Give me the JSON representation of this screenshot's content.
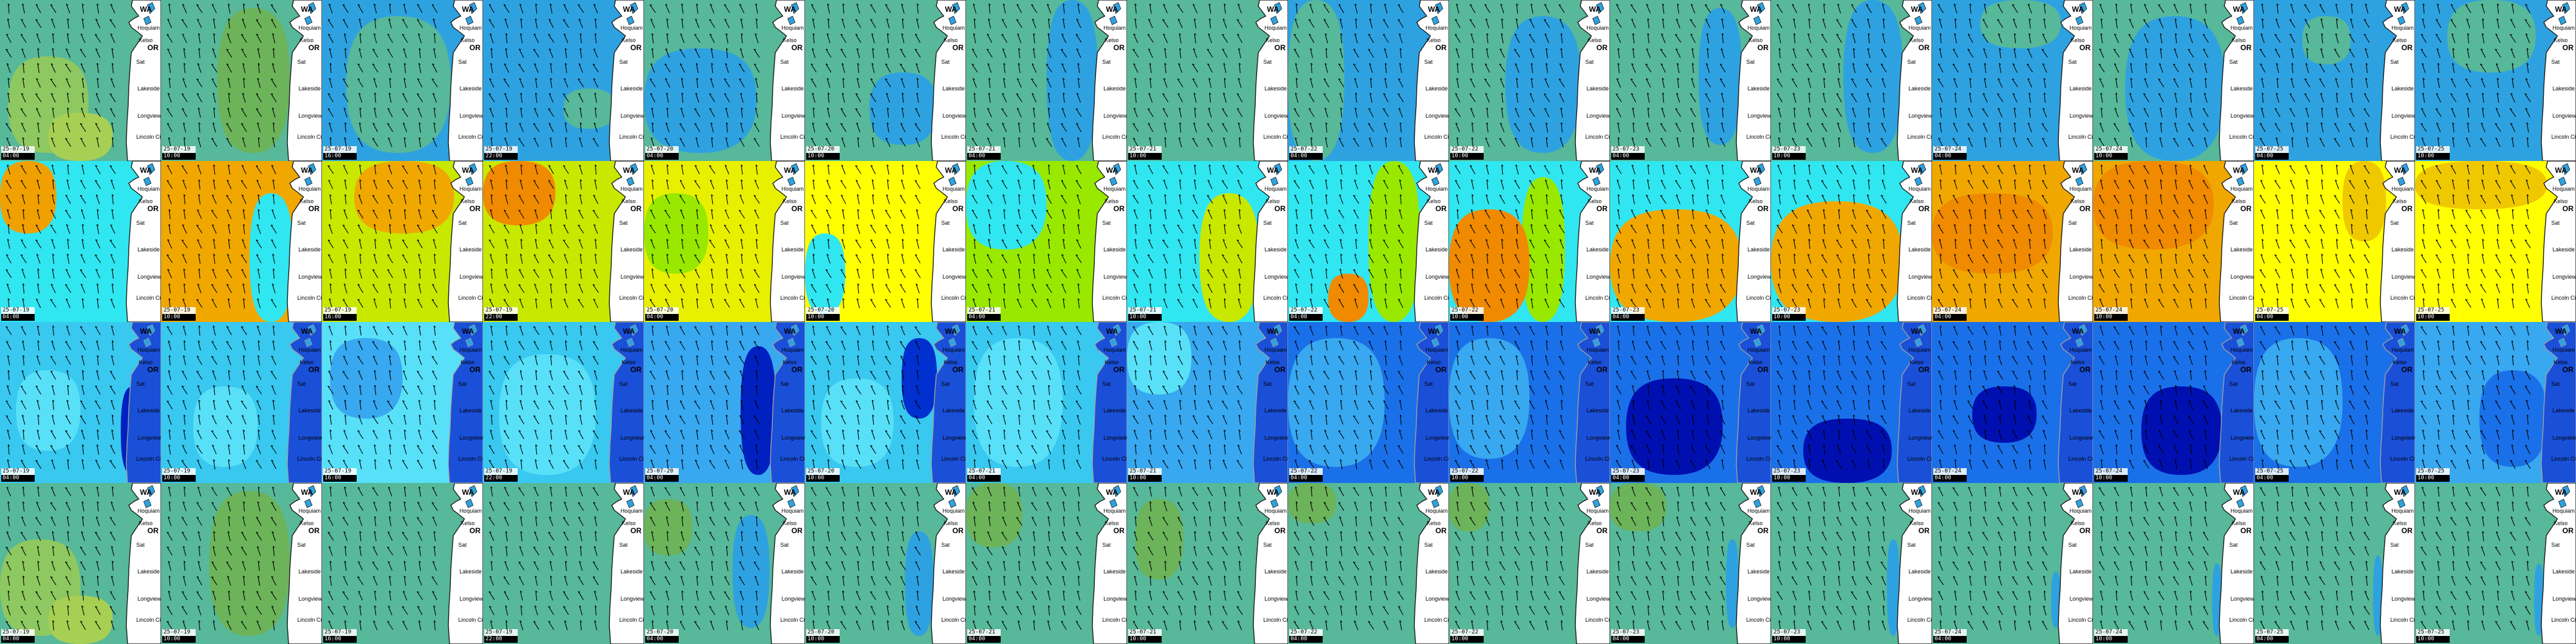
{
  "layout": {
    "columns": 16,
    "rows": 4
  },
  "places": [
    "WA",
    "Hoquiam",
    "Kelso",
    "OR",
    "Sat",
    "Lakeside",
    "Longview",
    "Lincoln City"
  ],
  "rows": [
    {
      "name": "row-1",
      "land": "#ffffff",
      "coast": "#1a1a1a",
      "tiles": [
        {
          "date": "25-07-19",
          "time": "04:00",
          "bg": "#57b89a",
          "blobs": [
            [
              "#8dc860",
              0.05,
              0.35,
              0.55,
              0.95
            ],
            [
              "#a6cf54",
              0.3,
              0.7,
              0.7,
              1.0
            ]
          ]
        },
        {
          "date": "25-07-19",
          "time": "10:00",
          "bg": "#57b89a",
          "blobs": [
            [
              "#6cb35a",
              0.35,
              0.05,
              0.8,
              0.95
            ]
          ]
        },
        {
          "date": "25-07-19",
          "time": "16:00",
          "bg": "#2ea2e0",
          "blobs": [
            [
              "#57b89a",
              0.15,
              0.1,
              0.8,
              0.95
            ]
          ]
        },
        {
          "date": "25-07-19",
          "time": "22:00",
          "bg": "#2ea2e0",
          "blobs": [
            [
              "#57b89a",
              0.5,
              0.55,
              0.82,
              0.8
            ]
          ]
        },
        {
          "date": "25-07-20",
          "time": "04:00",
          "bg": "#57b89a",
          "blobs": [
            [
              "#2ea2e0",
              0.0,
              0.3,
              0.7,
              0.95
            ]
          ]
        },
        {
          "date": "25-07-20",
          "time": "10:00",
          "bg": "#57b89a",
          "blobs": [
            [
              "#2ea2e0",
              0.4,
              0.45,
              0.82,
              0.9
            ]
          ]
        },
        {
          "date": "25-07-21",
          "time": "04:00",
          "bg": "#57b89a",
          "blobs": [
            [
              "#2ea2e0",
              0.5,
              0.0,
              0.82,
              1.0
            ]
          ]
        },
        {
          "date": "25-07-21",
          "time": "10:00",
          "bg": "#57b89a",
          "blobs": []
        },
        {
          "date": "25-07-22",
          "time": "04:00",
          "bg": "#2ea2e0",
          "blobs": [
            [
              "#57b89a",
              0.0,
              0.0,
              0.35,
              1.0
            ]
          ]
        },
        {
          "date": "25-07-22",
          "time": "10:00",
          "bg": "#57b89a",
          "blobs": [
            [
              "#2ea2e0",
              0.35,
              0.1,
              0.82,
              0.95
            ]
          ]
        },
        {
          "date": "25-07-23",
          "time": "04:00",
          "bg": "#57b89a",
          "blobs": [
            [
              "#2ea2e0",
              0.55,
              0.05,
              0.82,
              0.9
            ]
          ]
        },
        {
          "date": "25-07-23",
          "time": "10:00",
          "bg": "#57b89a",
          "blobs": [
            [
              "#2ea2e0",
              0.45,
              0.0,
              0.82,
              0.95
            ]
          ]
        },
        {
          "date": "25-07-24",
          "time": "04:00",
          "bg": "#2ea2e0",
          "blobs": [
            [
              "#57b89a",
              0.3,
              0.0,
              0.8,
              0.3
            ]
          ]
        },
        {
          "date": "25-07-24",
          "time": "10:00",
          "bg": "#57b89a",
          "blobs": [
            [
              "#2ea2e0",
              0.2,
              0.1,
              0.82,
              1.0
            ]
          ]
        },
        {
          "date": "25-07-25",
          "time": "04:00",
          "bg": "#2ea2e0",
          "blobs": [
            [
              "#57b89a",
              0.3,
              0.1,
              0.6,
              0.4
            ]
          ]
        },
        {
          "date": "25-07-25",
          "time": "10:00",
          "bg": "#2ea2e0",
          "blobs": [
            [
              "#57b89a",
              0.2,
              0.0,
              0.75,
              0.45
            ]
          ]
        }
      ]
    },
    {
      "name": "row-2",
      "land": "#ffffff",
      "coast": "#1a1a1a",
      "tiles": [
        {
          "date": "25-07-19",
          "time": "04:00",
          "bg": "#30e6f0",
          "blobs": [
            [
              "#f0a000",
              0.0,
              0.0,
              0.35,
              0.45
            ]
          ]
        },
        {
          "date": "25-07-19",
          "time": "10:00",
          "bg": "#f0a800",
          "blobs": [
            [
              "#30e6f0",
              0.55,
              0.2,
              0.82,
              1.0
            ]
          ]
        },
        {
          "date": "25-07-19",
          "time": "16:00",
          "bg": "#c8e800",
          "blobs": [
            [
              "#f0a800",
              0.2,
              0.0,
              0.82,
              0.45
            ]
          ]
        },
        {
          "date": "25-07-19",
          "time": "22:00",
          "bg": "#c8e800",
          "blobs": [
            [
              "#f08a00",
              0.0,
              0.0,
              0.45,
              0.4
            ]
          ]
        },
        {
          "date": "25-07-20",
          "time": "04:00",
          "bg": "#e8f000",
          "blobs": [
            [
              "#98e800",
              0.0,
              0.2,
              0.4,
              0.7
            ]
          ]
        },
        {
          "date": "25-07-20",
          "time": "10:00",
          "bg": "#ffff00",
          "blobs": [
            [
              "#30e6f0",
              0.0,
              0.45,
              0.25,
              0.95
            ]
          ]
        },
        {
          "date": "25-07-21",
          "time": "04:00",
          "bg": "#98e800",
          "blobs": [
            [
              "#30e6f0",
              0.0,
              0.0,
              0.5,
              0.55
            ]
          ]
        },
        {
          "date": "25-07-21",
          "time": "10:00",
          "bg": "#30e6f0",
          "blobs": [
            [
              "#c8e800",
              0.45,
              0.2,
              0.82,
              1.0
            ]
          ]
        },
        {
          "date": "25-07-22",
          "time": "04:00",
          "bg": "#30e6f0",
          "blobs": [
            [
              "#98e800",
              0.5,
              0.0,
              0.82,
              1.0
            ],
            [
              "#f08a00",
              0.25,
              0.7,
              0.5,
              1.0
            ]
          ]
        },
        {
          "date": "25-07-22",
          "time": "10:00",
          "bg": "#30e6f0",
          "blobs": [
            [
              "#98e800",
              0.45,
              0.1,
              0.72,
              1.0
            ],
            [
              "#f08a00",
              0.0,
              0.3,
              0.5,
              1.0
            ]
          ]
        },
        {
          "date": "25-07-23",
          "time": "04:00",
          "bg": "#30e6f0",
          "blobs": [
            [
              "#f0a800",
              0.0,
              0.3,
              0.82,
              1.0
            ]
          ]
        },
        {
          "date": "25-07-23",
          "time": "10:00",
          "bg": "#30e6f0",
          "blobs": [
            [
              "#f0a800",
              0.0,
              0.25,
              0.82,
              1.0
            ]
          ]
        },
        {
          "date": "25-07-24",
          "time": "04:00",
          "bg": "#f0a800",
          "blobs": [
            [
              "#f08a00",
              0.0,
              0.2,
              0.75,
              0.7
            ]
          ]
        },
        {
          "date": "25-07-24",
          "time": "10:00",
          "bg": "#f0a800",
          "blobs": [
            [
              "#f08a00",
              0.0,
              0.0,
              0.75,
              0.55
            ]
          ]
        },
        {
          "date": "25-07-25",
          "time": "04:00",
          "bg": "#ffff00",
          "blobs": [
            [
              "#f0c800",
              0.55,
              0.0,
              0.82,
              0.5
            ]
          ]
        },
        {
          "date": "25-07-25",
          "time": "10:00",
          "bg": "#ffff00",
          "blobs": [
            [
              "#f0c800",
              0.0,
              0.0,
              0.82,
              0.3
            ]
          ]
        }
      ]
    },
    {
      "name": "row-3",
      "land": "#1a4fd8",
      "coast": "#a0a0a0",
      "tiles": [
        {
          "date": "25-07-19",
          "time": "04:00",
          "bg": "#38c8f0",
          "blobs": [
            [
              "#58e0f8",
              0.1,
              0.3,
              0.5,
              0.8
            ],
            [
              "#0020c0",
              0.75,
              0.4,
              0.9,
              0.95
            ]
          ]
        },
        {
          "date": "25-07-19",
          "time": "10:00",
          "bg": "#38c8f0",
          "blobs": [
            [
              "#58e0f8",
              0.2,
              0.4,
              0.6,
              0.9
            ]
          ]
        },
        {
          "date": "25-07-19",
          "time": "16:00",
          "bg": "#58e0f8",
          "blobs": [
            [
              "#38a8f0",
              0.05,
              0.1,
              0.5,
              0.6
            ]
          ]
        },
        {
          "date": "25-07-19",
          "time": "22:00",
          "bg": "#38c8f0",
          "blobs": [
            [
              "#58e0f8",
              0.1,
              0.2,
              0.7,
              0.95
            ]
          ]
        },
        {
          "date": "25-07-20",
          "time": "04:00",
          "bg": "#38a8f0",
          "blobs": [
            [
              "#0020c0",
              0.6,
              0.15,
              0.82,
              0.95
            ]
          ]
        },
        {
          "date": "25-07-20",
          "time": "10:00",
          "bg": "#38c8f0",
          "blobs": [
            [
              "#58e0f8",
              0.1,
              0.35,
              0.55,
              0.9
            ],
            [
              "#0030d0",
              0.6,
              0.1,
              0.82,
              0.6
            ]
          ]
        },
        {
          "date": "25-07-21",
          "time": "04:00",
          "bg": "#38c8f0",
          "blobs": [
            [
              "#58e0f8",
              0.05,
              0.1,
              0.6,
              0.9
            ]
          ]
        },
        {
          "date": "25-07-21",
          "time": "10:00",
          "bg": "#38a8f0",
          "blobs": [
            [
              "#58e0f8",
              0.0,
              0.0,
              0.4,
              0.45
            ]
          ]
        },
        {
          "date": "25-07-22",
          "time": "04:00",
          "bg": "#1a70e8",
          "blobs": [
            [
              "#38a8f0",
              0.0,
              0.1,
              0.6,
              0.9
            ]
          ]
        },
        {
          "date": "25-07-22",
          "time": "10:00",
          "bg": "#1a70e8",
          "blobs": [
            [
              "#38a8f0",
              0.0,
              0.1,
              0.5,
              0.85
            ]
          ]
        },
        {
          "date": "25-07-23",
          "time": "04:00",
          "bg": "#1a70e8",
          "blobs": [
            [
              "#0010b0",
              0.1,
              0.35,
              0.7,
              0.95
            ]
          ]
        },
        {
          "date": "25-07-23",
          "time": "10:00",
          "bg": "#1a70e8",
          "blobs": [
            [
              "#0010b0",
              0.2,
              0.6,
              0.75,
              1.0
            ]
          ]
        },
        {
          "date": "25-07-24",
          "time": "04:00",
          "bg": "#1a70e8",
          "blobs": [
            [
              "#0010b0",
              0.25,
              0.4,
              0.65,
              0.75
            ]
          ]
        },
        {
          "date": "25-07-24",
          "time": "10:00",
          "bg": "#1a70e8",
          "blobs": [
            [
              "#0010b0",
              0.3,
              0.4,
              0.8,
              0.95
            ]
          ]
        },
        {
          "date": "25-07-25",
          "time": "04:00",
          "bg": "#1a70e8",
          "blobs": [
            [
              "#38a8f0",
              0.0,
              0.1,
              0.55,
              0.9
            ]
          ]
        },
        {
          "date": "25-07-25",
          "time": "10:00",
          "bg": "#38a8f0",
          "blobs": [
            [
              "#1a70e8",
              0.4,
              0.3,
              0.82,
              0.9
            ]
          ]
        }
      ]
    },
    {
      "name": "row-4",
      "land": "#ffffff",
      "coast": "#1a1a1a",
      "tiles": [
        {
          "date": "25-07-19",
          "time": "04:00",
          "bg": "#57b89a",
          "blobs": [
            [
              "#8dc860",
              0.0,
              0.35,
              0.5,
              0.95
            ],
            [
              "#a6cf54",
              0.3,
              0.7,
              0.7,
              1.0
            ]
          ]
        },
        {
          "date": "25-07-19",
          "time": "10:00",
          "bg": "#57b89a",
          "blobs": [
            [
              "#6cb35a",
              0.3,
              0.05,
              0.8,
              0.95
            ]
          ]
        },
        {
          "date": "25-07-19",
          "time": "16:00",
          "bg": "#57b89a",
          "blobs": []
        },
        {
          "date": "25-07-19",
          "time": "22:00",
          "bg": "#57b89a",
          "blobs": []
        },
        {
          "date": "25-07-20",
          "time": "04:00",
          "bg": "#57b89a",
          "blobs": [
            [
              "#6cb35a",
              0.0,
              0.1,
              0.3,
              0.45
            ],
            [
              "#2ea2e0",
              0.55,
              0.2,
              0.78,
              0.9
            ]
          ]
        },
        {
          "date": "25-07-20",
          "time": "10:00",
          "bg": "#57b89a",
          "blobs": [
            [
              "#2ea2e0",
              0.62,
              0.3,
              0.8,
              0.95
            ]
          ]
        },
        {
          "date": "25-07-21",
          "time": "04:00",
          "bg": "#57b89a",
          "blobs": [
            [
              "#6cb35a",
              0.0,
              0.0,
              0.35,
              0.4
            ]
          ]
        },
        {
          "date": "25-07-21",
          "time": "10:00",
          "bg": "#57b89a",
          "blobs": [
            [
              "#6cb35a",
              0.05,
              0.1,
              0.35,
              0.6
            ]
          ]
        },
        {
          "date": "25-07-22",
          "time": "04:00",
          "bg": "#57b89a",
          "blobs": [
            [
              "#6cb35a",
              0.0,
              0.0,
              0.3,
              0.25
            ]
          ]
        },
        {
          "date": "25-07-22",
          "time": "10:00",
          "bg": "#57b89a",
          "blobs": [
            [
              "#6cb35a",
              0.0,
              0.0,
              0.25,
              0.3
            ]
          ]
        },
        {
          "date": "25-07-23",
          "time": "04:00",
          "bg": "#57b89a",
          "blobs": [
            [
              "#6cb35a",
              0.0,
              0.0,
              0.35,
              0.3
            ],
            [
              "#2ea2e0",
              0.72,
              0.35,
              0.8,
              0.9
            ]
          ]
        },
        {
          "date": "25-07-23",
          "time": "10:00",
          "bg": "#57b89a",
          "blobs": [
            [
              "#2ea2e0",
              0.72,
              0.35,
              0.8,
              0.95
            ]
          ]
        },
        {
          "date": "25-07-24",
          "time": "04:00",
          "bg": "#57b89a",
          "blobs": [
            [
              "#2ea2e0",
              0.74,
              0.55,
              0.8,
              0.9
            ]
          ]
        },
        {
          "date": "25-07-24",
          "time": "10:00",
          "bg": "#57b89a",
          "blobs": [
            [
              "#2ea2e0",
              0.74,
              0.5,
              0.8,
              0.95
            ]
          ]
        },
        {
          "date": "25-07-25",
          "time": "04:00",
          "bg": "#57b89a",
          "blobs": [
            [
              "#2ea2e0",
              0.74,
              0.45,
              0.8,
              0.95
            ]
          ]
        },
        {
          "date": "25-07-25",
          "time": "10:00",
          "bg": "#57b89a",
          "blobs": [
            [
              "#2ea2e0",
              0.74,
              0.5,
              0.8,
              0.95
            ]
          ]
        }
      ]
    }
  ]
}
